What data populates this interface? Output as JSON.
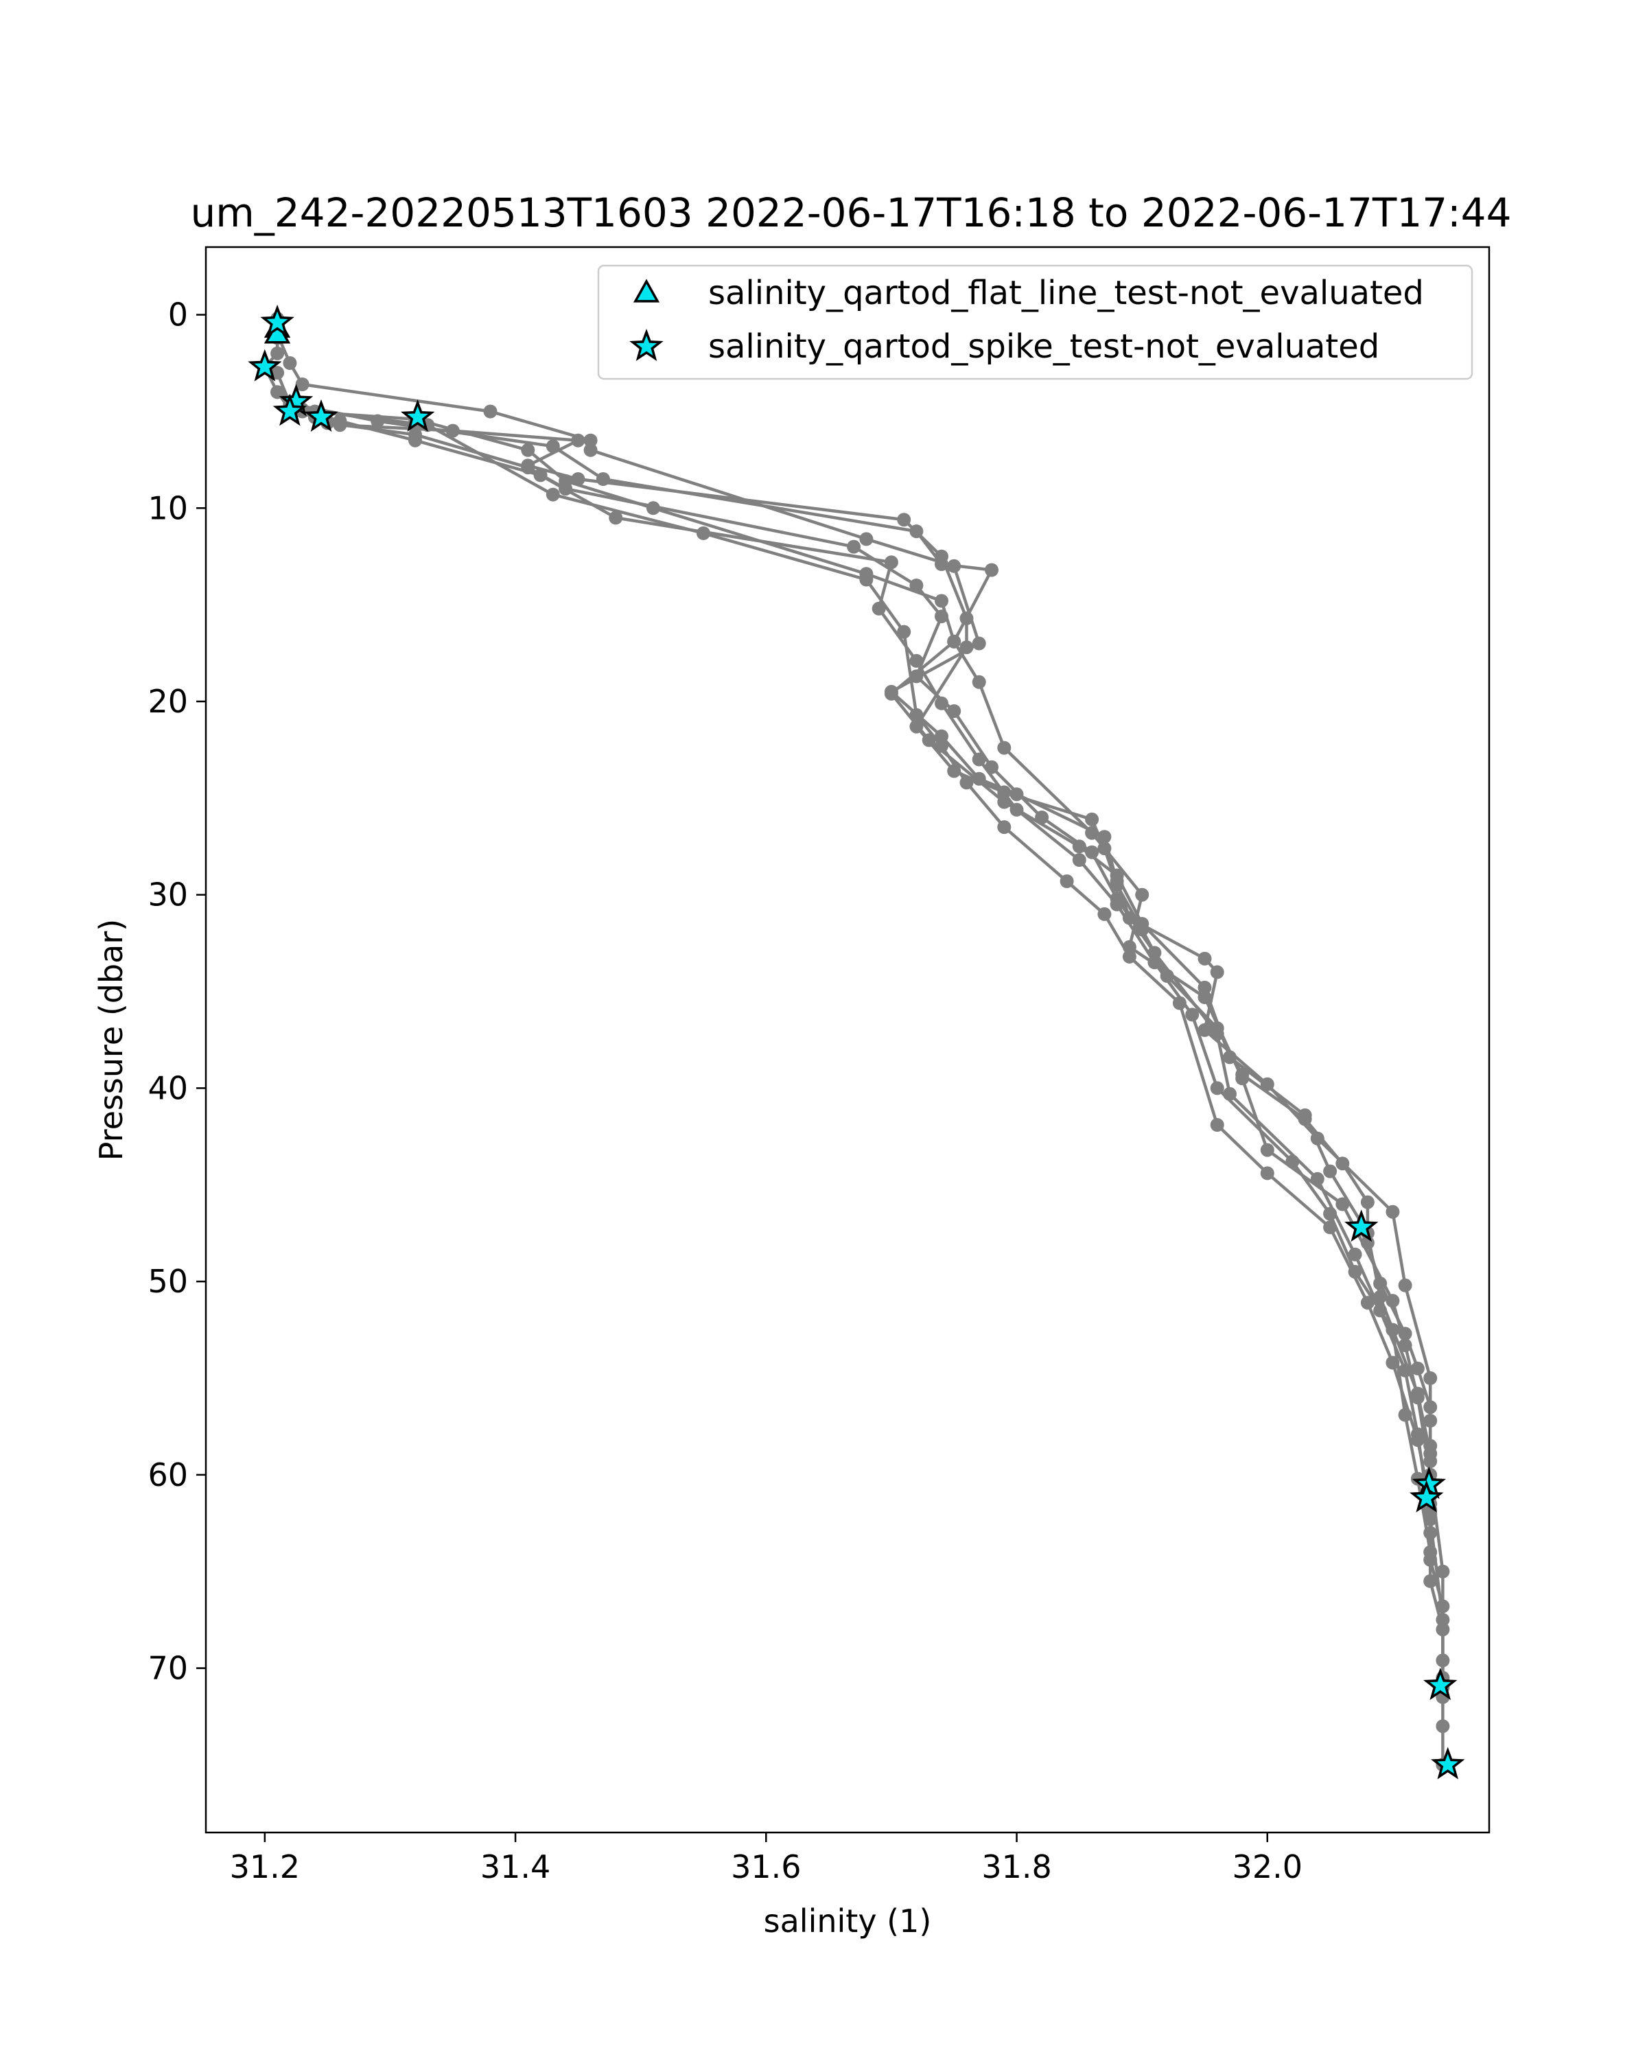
{
  "chart_data": {
    "type": "line",
    "title": "um_242-20220513T1603 2022-06-17T16:18 to 2022-06-17T17:44",
    "xlabel": "salinity (1)",
    "ylabel": "Pressure (dbar)",
    "xlim": [
      31.153,
      32.177
    ],
    "ylim": [
      78.5,
      -3.5
    ],
    "y_inverted": true,
    "xticks": [
      31.2,
      31.4,
      31.6,
      31.8,
      32.0
    ],
    "xtick_labels": [
      "31.2",
      "31.4",
      "31.6",
      "31.8",
      "32.0"
    ],
    "yticks": [
      0,
      10,
      20,
      30,
      40,
      50,
      60,
      70
    ],
    "ytick_labels": [
      "0",
      "10",
      "20",
      "30",
      "40",
      "50",
      "60",
      "70"
    ],
    "grid": false,
    "legend_position": "top-right",
    "colors": {
      "profile": "#808080",
      "marker_fill": "#00e5ee",
      "marker_edge": "#000000"
    },
    "series": [
      {
        "kind": "profile",
        "x": [
          31.21,
          31.21,
          31.21,
          31.21,
          31.2,
          31.21,
          31.22,
          31.24,
          31.26,
          31.35,
          31.45,
          31.41,
          31.45,
          31.71,
          31.74,
          31.76,
          31.76,
          31.72,
          31.75,
          31.79,
          31.86,
          31.87,
          31.88,
          31.9,
          31.92,
          31.96,
          31.98,
          32.03,
          32.06,
          32.08,
          32.08,
          32.09,
          32.11,
          32.12,
          32.13,
          32.13,
          32.13,
          32.13,
          32.13,
          32.13,
          32.14,
          32.14,
          32.14,
          32.14,
          32.14
        ],
        "y": [
          0.2,
          0.8,
          1.2,
          2.0,
          2.7,
          4.0,
          4.9,
          5.3,
          5.7,
          6.0,
          6.5,
          7.8,
          8.5,
          10.6,
          12.5,
          15.7,
          17.2,
          21.3,
          23.6,
          24.7,
          26.1,
          27.6,
          29.5,
          31.8,
          34.2,
          36.9,
          39.3,
          41.6,
          43.9,
          45.9,
          48.0,
          50.1,
          52.7,
          54.5,
          56.5,
          58.5,
          60.4,
          61.1,
          63.0,
          65.5,
          68.0,
          69.6,
          71.0,
          73.0,
          75.0
        ]
      },
      {
        "kind": "profile",
        "x": [
          31.21,
          31.22,
          31.23,
          31.38,
          31.46,
          31.46,
          31.68,
          31.75,
          31.77,
          31.7,
          31.74,
          31.77,
          31.8,
          31.87,
          31.88,
          31.89,
          31.95,
          31.96,
          31.95,
          32.0,
          32.04,
          32.1,
          32.11,
          32.13,
          32.13,
          32.13,
          32.13,
          32.13,
          32.14,
          32.14
        ],
        "y": [
          1.0,
          2.5,
          3.6,
          5.0,
          6.5,
          7.0,
          11.6,
          13.0,
          17.0,
          19.5,
          21.8,
          24.0,
          24.8,
          27.0,
          29.3,
          31.2,
          33.3,
          34.0,
          37.0,
          39.8,
          42.6,
          46.4,
          50.2,
          55.0,
          57.2,
          59.3,
          62.0,
          64.4,
          66.8,
          71.5
        ]
      },
      {
        "kind": "profile",
        "x": [
          31.21,
          31.22,
          31.29,
          31.43,
          31.47,
          31.72,
          31.74,
          31.78,
          31.75,
          31.77,
          31.79,
          31.86,
          31.9,
          31.89,
          31.95,
          31.98,
          32.0,
          32.06,
          32.1,
          32.11,
          32.12,
          32.13,
          32.14,
          32.14
        ],
        "y": [
          3.0,
          4.6,
          5.5,
          6.8,
          8.5,
          11.2,
          12.9,
          13.2,
          16.9,
          19.0,
          22.4,
          26.8,
          30.0,
          32.7,
          35.3,
          39.5,
          43.2,
          46.0,
          51.0,
          53.3,
          56.0,
          60.0,
          65.0,
          70.5
        ]
      },
      {
        "kind": "profile",
        "x": [
          31.22,
          31.25,
          31.32,
          31.41,
          31.44,
          31.67,
          31.72,
          31.74,
          31.72,
          31.75,
          31.78,
          31.82,
          31.86,
          31.88,
          31.91,
          31.96,
          31.97,
          32.04,
          32.07,
          32.09,
          32.11,
          32.12,
          32.13,
          32.14
        ],
        "y": [
          4.5,
          5.6,
          6.2,
          7.9,
          9.0,
          12.0,
          14.0,
          15.6,
          18.7,
          20.5,
          23.4,
          26.0,
          27.8,
          30.2,
          33.0,
          37.2,
          40.3,
          44.7,
          48.6,
          51.5,
          54.6,
          57.9,
          62.3,
          67.5
        ]
      },
      {
        "kind": "profile",
        "x": [
          31.23,
          31.32,
          31.41,
          31.44,
          31.51,
          31.68,
          31.74,
          31.75,
          31.7,
          31.73,
          31.79,
          31.85,
          31.88,
          31.9,
          31.95,
          31.97,
          32.03,
          32.05,
          32.08,
          32.09,
          32.12,
          32.13,
          32.13
        ],
        "y": [
          5.0,
          5.4,
          7.0,
          8.6,
          10.0,
          13.4,
          14.8,
          16.9,
          19.6,
          22.0,
          25.2,
          27.5,
          29.0,
          31.5,
          34.8,
          38.4,
          41.4,
          44.3,
          47.5,
          50.8,
          55.8,
          58.9,
          61.8
        ]
      },
      {
        "kind": "profile",
        "x": [
          31.23,
          31.26,
          31.32,
          31.42,
          31.48,
          31.7,
          31.69,
          31.72,
          31.74,
          31.77,
          31.8,
          31.85,
          31.88,
          31.91,
          31.94,
          31.96,
          32.02,
          32.05,
          32.07,
          32.1,
          32.11,
          32.12,
          32.13
        ],
        "y": [
          4.9,
          5.5,
          6.5,
          8.3,
          10.5,
          12.8,
          15.2,
          17.9,
          20.1,
          23.0,
          25.6,
          28.2,
          30.5,
          33.5,
          36.2,
          40.0,
          43.8,
          46.5,
          49.5,
          52.5,
          56.9,
          60.2,
          64.0
        ]
      },
      {
        "kind": "profile",
        "x": [
          31.21,
          31.24,
          31.33,
          31.43,
          31.55,
          31.68,
          31.71,
          31.72,
          31.74,
          31.76,
          31.79,
          31.84,
          31.87,
          31.89,
          31.93,
          31.96,
          32.0,
          32.05,
          32.08,
          32.1,
          32.12,
          32.13
        ],
        "y": [
          4.0,
          5.0,
          5.7,
          9.3,
          11.3,
          13.7,
          16.4,
          20.7,
          22.3,
          24.2,
          26.5,
          29.3,
          31.0,
          33.2,
          35.6,
          41.9,
          44.4,
          47.2,
          51.1,
          54.2,
          58.2,
          61.5
        ]
      }
    ],
    "markers": [
      {
        "name": "salinity_qartod_flat_line_test-not_evaluated",
        "marker": "triangle",
        "x": [
          31.21,
          31.21
        ],
        "y": [
          0.7,
          1.0
        ]
      },
      {
        "name": "salinity_qartod_spike_test-not_evaluated",
        "marker": "star",
        "x": [
          31.21,
          31.2,
          31.225,
          31.22,
          31.245,
          31.322,
          32.075,
          32.129,
          32.127,
          32.138,
          32.144
        ],
        "y": [
          0.4,
          2.7,
          4.5,
          5.0,
          5.3,
          5.3,
          47.2,
          60.5,
          61.2,
          70.9,
          75.0
        ]
      }
    ]
  }
}
